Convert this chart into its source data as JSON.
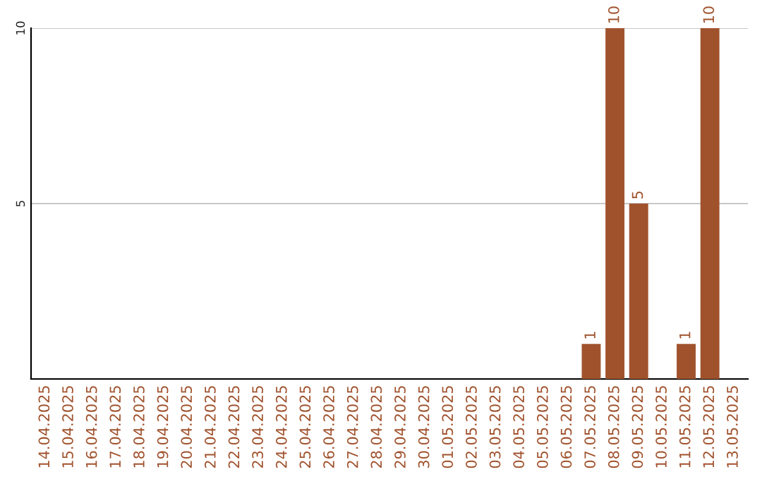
{
  "chart_data": {
    "type": "bar",
    "categories": [
      "14.04.2025",
      "15.04.2025",
      "16.04.2025",
      "17.04.2025",
      "18.04.2025",
      "19.04.2025",
      "20.04.2025",
      "21.04.2025",
      "22.04.2025",
      "23.04.2025",
      "24.04.2025",
      "25.04.2025",
      "26.04.2025",
      "27.04.2025",
      "28.04.2025",
      "29.04.2025",
      "30.04.2025",
      "01.05.2025",
      "02.05.2025",
      "03.05.2025",
      "04.05.2025",
      "05.05.2025",
      "06.05.2025",
      "07.05.2025",
      "08.05.2025",
      "09.05.2025",
      "10.05.2025",
      "11.05.2025",
      "12.05.2025",
      "13.05.2025"
    ],
    "values": [
      null,
      null,
      null,
      null,
      null,
      null,
      null,
      null,
      null,
      null,
      null,
      null,
      null,
      null,
      null,
      null,
      null,
      null,
      null,
      null,
      null,
      null,
      null,
      1,
      10,
      5,
      null,
      1,
      10,
      null
    ],
    "value_labels": [
      null,
      null,
      null,
      null,
      null,
      null,
      null,
      null,
      null,
      null,
      null,
      null,
      null,
      null,
      null,
      null,
      null,
      null,
      null,
      null,
      null,
      null,
      null,
      "1",
      "10",
      "5",
      null,
      "1",
      "10",
      null
    ],
    "color": "#a0522d",
    "ylim": [
      0,
      10
    ],
    "yticks": [
      5,
      10
    ],
    "grid": "y",
    "legend": false
  }
}
